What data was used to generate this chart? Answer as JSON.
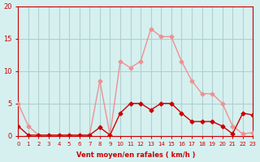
{
  "x": [
    0,
    1,
    2,
    3,
    4,
    5,
    6,
    7,
    8,
    9,
    10,
    11,
    12,
    13,
    14,
    15,
    16,
    17,
    18,
    19,
    20,
    21,
    22,
    23
  ],
  "rafales": [
    5,
    1.5,
    0.1,
    0.1,
    0.1,
    0.1,
    0.1,
    0.1,
    8.5,
    0.1,
    11.5,
    10.5,
    11.5,
    16.5,
    15.3,
    15.3,
    11.5,
    8.5,
    6.5,
    6.5,
    5.0,
    1.5,
    0.3,
    0.5
  ],
  "moyen": [
    1.5,
    0.1,
    0.1,
    0.1,
    0.1,
    0.1,
    0.1,
    0.1,
    1.3,
    0.1,
    3.5,
    5.0,
    5.0,
    4.0,
    5.0,
    5.0,
    3.5,
    2.2,
    2.2,
    2.2,
    1.5,
    0.3,
    3.5,
    3.2
  ],
  "ylim": [
    0,
    20
  ],
  "xlim": [
    0,
    23
  ],
  "yticks": [
    0,
    5,
    10,
    15,
    20
  ],
  "xlabel": "Vent moyen/en rafales ( km/h )",
  "bg_color": "#d6f0f0",
  "grid_color": "#b0d0d0",
  "line_color_rafales": "#f09090",
  "line_color_moyen": "#cc0000",
  "marker_color_rafales": "#f09090",
  "marker_color_moyen": "#cc0000",
  "axis_color": "#cc0000",
  "tick_color": "#cc0000"
}
